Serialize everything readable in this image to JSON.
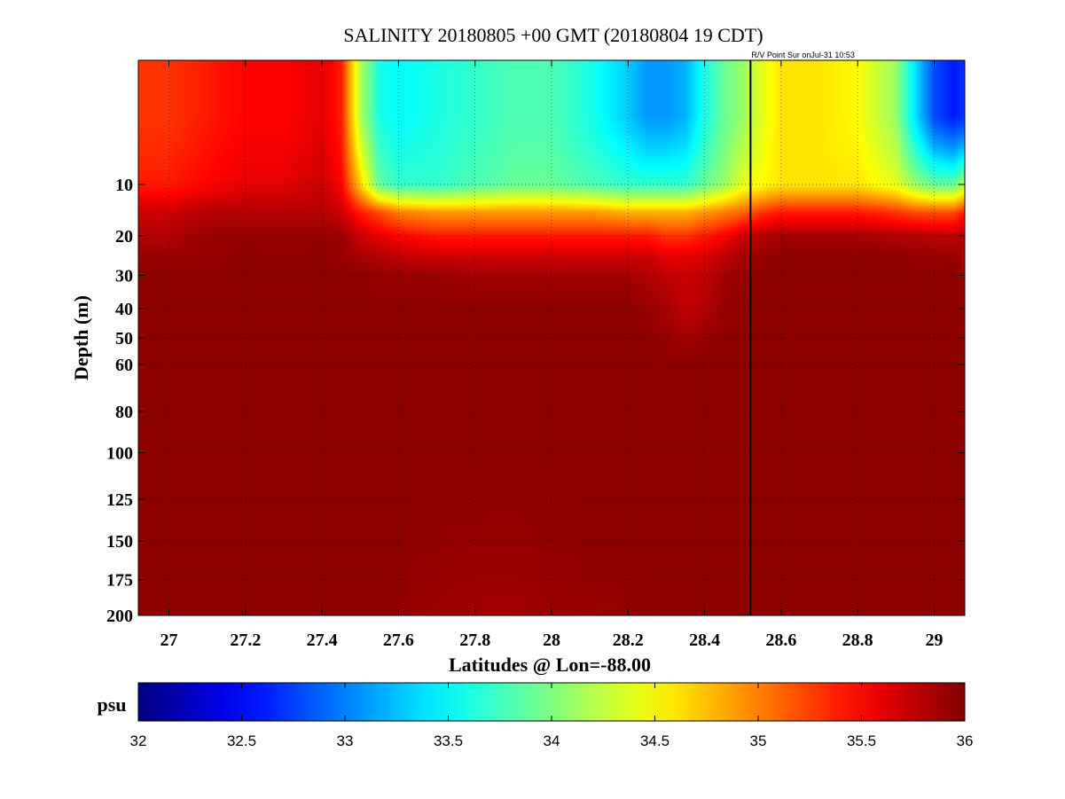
{
  "chart_data": {
    "type": "heatmap",
    "title": "SALINITY 20180805 +00 GMT (20180804 19 CDT)",
    "annotation": "R/V Point Sur onJul-31 10:53",
    "xlabel": "Latitudes @ Lon=-88.00",
    "ylabel": "Depth (m)",
    "xlim": [
      26.92,
      29.08
    ],
    "ylim": [
      200,
      0
    ],
    "y_scale": "sqrt",
    "x_ticks": [
      27,
      27.2,
      27.4,
      27.6,
      27.8,
      28,
      28.2,
      28.4,
      28.6,
      28.8,
      29
    ],
    "x_tick_labels": [
      "27",
      "27.2",
      "27.4",
      "27.6",
      "27.8",
      "28",
      "28.2",
      "28.4",
      "28.6",
      "28.8",
      "29"
    ],
    "y_ticks": [
      10,
      20,
      30,
      40,
      50,
      60,
      80,
      100,
      125,
      150,
      175,
      200
    ],
    "y_tick_labels": [
      "10",
      "20",
      "30",
      "40",
      "50",
      "60",
      "80",
      "100",
      "125",
      "150",
      "175",
      "200"
    ],
    "grid": true,
    "vertical_marker_lat": 28.52,
    "colorbar": {
      "label": "psu",
      "min": 32,
      "max": 36,
      "colormap": "jet",
      "ticks": [
        32,
        32.5,
        33,
        33.5,
        34,
        34.5,
        35,
        35.5,
        36
      ],
      "tick_labels": [
        "32",
        "32.5",
        "33",
        "33.5",
        "34",
        "34.5",
        "35",
        "35.5",
        "36"
      ]
    },
    "section": {
      "latitudes": [
        26.92,
        27.0,
        27.1,
        27.2,
        27.3,
        27.4,
        27.45,
        27.5,
        27.55,
        27.6,
        27.7,
        27.8,
        27.9,
        28.0,
        28.1,
        28.2,
        28.25,
        28.3,
        28.35,
        28.4,
        28.45,
        28.5,
        28.55,
        28.6,
        28.7,
        28.8,
        28.9,
        28.95,
        29.0,
        29.05,
        29.08
      ],
      "depths": [
        2,
        10,
        15,
        20,
        25,
        30,
        40,
        50,
        60,
        80,
        100,
        150,
        200
      ],
      "salinity_psu": [
        [
          35.3,
          35.3,
          35.4,
          35.5,
          35.5,
          35.6,
          35.4,
          34.2,
          33.6,
          33.5,
          33.6,
          33.7,
          33.8,
          33.8,
          33.6,
          33.3,
          33.1,
          33.1,
          33.2,
          33.6,
          33.9,
          34.1,
          34.4,
          34.6,
          34.6,
          34.5,
          34.1,
          33.4,
          32.8,
          32.6,
          32.7
        ],
        [
          35.4,
          35.4,
          35.5,
          35.6,
          35.6,
          35.7,
          35.5,
          34.7,
          33.9,
          33.7,
          33.7,
          33.8,
          33.9,
          33.9,
          33.8,
          33.7,
          33.7,
          33.7,
          33.7,
          33.9,
          34.1,
          34.4,
          34.5,
          34.6,
          34.6,
          34.6,
          34.4,
          34.1,
          33.9,
          33.9,
          34.2
        ],
        [
          35.7,
          35.7,
          35.8,
          35.8,
          35.8,
          35.8,
          35.7,
          35.4,
          35.2,
          35.0,
          34.9,
          34.9,
          34.9,
          34.9,
          34.9,
          34.8,
          34.8,
          34.8,
          34.8,
          34.9,
          35.0,
          35.1,
          35.3,
          35.4,
          35.4,
          35.4,
          35.3,
          35.2,
          35.2,
          35.2,
          35.4
        ],
        [
          35.8,
          35.8,
          35.9,
          35.9,
          35.9,
          35.9,
          35.9,
          35.7,
          35.6,
          35.5,
          35.4,
          35.4,
          35.4,
          35.4,
          35.4,
          35.4,
          35.4,
          35.3,
          35.3,
          35.4,
          35.5,
          35.7,
          35.8,
          35.85,
          35.85,
          35.85,
          35.8,
          35.8,
          35.75,
          35.75,
          35.8
        ],
        [
          35.9,
          35.9,
          35.9,
          35.95,
          35.95,
          35.95,
          35.9,
          35.85,
          35.8,
          35.75,
          35.7,
          35.7,
          35.7,
          35.7,
          35.7,
          35.7,
          35.7,
          35.6,
          35.6,
          35.65,
          35.75,
          35.85,
          35.9,
          35.95,
          35.95,
          35.95,
          35.95,
          35.9,
          35.9,
          35.9,
          35.85
        ],
        [
          35.95,
          35.95,
          35.95,
          35.95,
          35.95,
          35.95,
          35.95,
          35.95,
          35.9,
          35.9,
          35.9,
          35.85,
          35.85,
          35.85,
          35.85,
          35.85,
          35.8,
          35.75,
          35.7,
          35.75,
          35.85,
          35.9,
          35.95,
          35.95,
          35.95,
          35.95,
          35.95,
          35.95,
          35.95,
          35.95,
          35.9
        ],
        [
          35.95,
          35.95,
          35.95,
          35.95,
          35.95,
          35.95,
          35.95,
          35.95,
          35.95,
          35.95,
          35.95,
          35.95,
          35.95,
          35.95,
          35.95,
          35.95,
          35.9,
          35.85,
          35.75,
          35.8,
          35.9,
          35.95,
          35.95,
          35.95,
          35.95,
          35.95,
          35.95,
          35.95,
          35.95,
          35.95,
          35.95
        ],
        [
          35.95,
          35.95,
          35.95,
          35.95,
          35.95,
          35.95,
          35.95,
          35.95,
          35.95,
          35.95,
          35.95,
          35.95,
          35.95,
          35.95,
          35.95,
          35.95,
          35.95,
          35.9,
          35.85,
          35.9,
          35.95,
          35.95,
          35.95,
          35.95,
          35.95,
          35.95,
          35.95,
          35.95,
          35.95,
          35.95,
          35.95
        ],
        [
          35.95,
          35.95,
          35.95,
          35.95,
          35.95,
          35.95,
          35.95,
          35.95,
          35.95,
          35.95,
          35.95,
          35.95,
          35.95,
          35.95,
          35.95,
          35.95,
          35.95,
          35.95,
          35.95,
          35.95,
          35.95,
          35.95,
          35.95,
          35.95,
          35.95,
          35.95,
          35.95,
          35.95,
          35.95,
          35.95,
          35.95
        ],
        [
          35.95,
          35.95,
          35.95,
          35.95,
          35.95,
          35.95,
          35.95,
          35.95,
          35.95,
          35.95,
          35.95,
          35.95,
          35.95,
          35.95,
          35.95,
          35.95,
          35.95,
          35.95,
          35.95,
          35.95,
          35.95,
          35.95,
          35.95,
          35.95,
          35.95,
          35.95,
          35.95,
          35.95,
          35.95,
          35.95,
          35.95
        ],
        [
          35.95,
          35.95,
          35.95,
          35.95,
          35.95,
          35.95,
          35.95,
          35.95,
          35.95,
          35.95,
          35.95,
          35.95,
          35.95,
          35.95,
          35.95,
          35.95,
          35.95,
          35.95,
          35.95,
          35.95,
          35.95,
          35.95,
          35.95,
          35.95,
          35.95,
          35.95,
          35.95,
          35.95,
          35.95,
          35.95,
          35.95
        ],
        [
          35.95,
          35.95,
          35.95,
          35.95,
          35.95,
          35.95,
          35.95,
          35.95,
          35.95,
          35.95,
          35.93,
          35.92,
          35.92,
          35.93,
          35.95,
          35.95,
          35.95,
          35.95,
          35.95,
          35.95,
          35.95,
          35.95,
          35.95,
          35.95,
          35.95,
          35.95,
          35.95,
          35.95,
          35.95,
          35.95,
          35.95
        ],
        [
          35.95,
          35.95,
          35.95,
          35.95,
          35.95,
          35.95,
          35.95,
          35.95,
          35.95,
          35.92,
          35.88,
          35.85,
          35.85,
          35.88,
          35.9,
          35.92,
          35.93,
          35.95,
          35.95,
          35.95,
          35.95,
          35.95,
          35.95,
          35.95,
          35.95,
          35.95,
          35.95,
          35.95,
          35.95,
          35.95,
          35.95
        ]
      ]
    }
  }
}
